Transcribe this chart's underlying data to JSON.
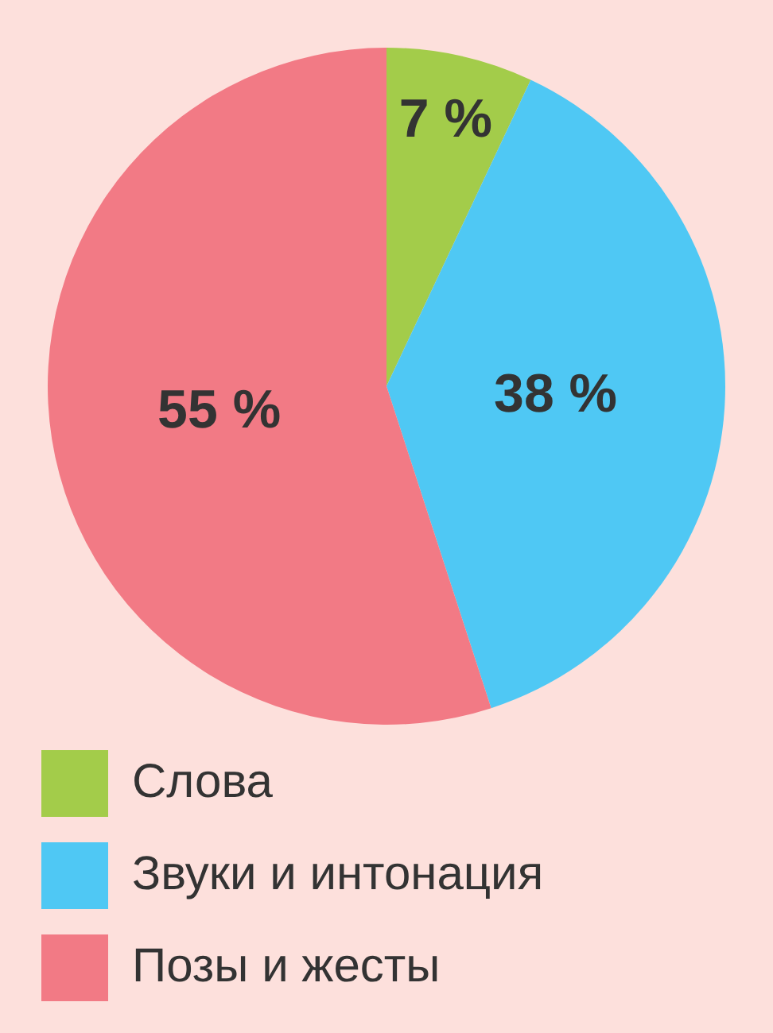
{
  "chart_data": {
    "type": "pie",
    "categories": [
      "Слова",
      "Звуки и интонация",
      "Позы и жесты"
    ],
    "values": [
      7,
      38,
      55
    ],
    "colors": [
      "#a3cc4a",
      "#4fc8f4",
      "#f27a85"
    ],
    "value_labels": [
      "7 %",
      "38 %",
      "55 %"
    ],
    "legend": "bottom"
  }
}
